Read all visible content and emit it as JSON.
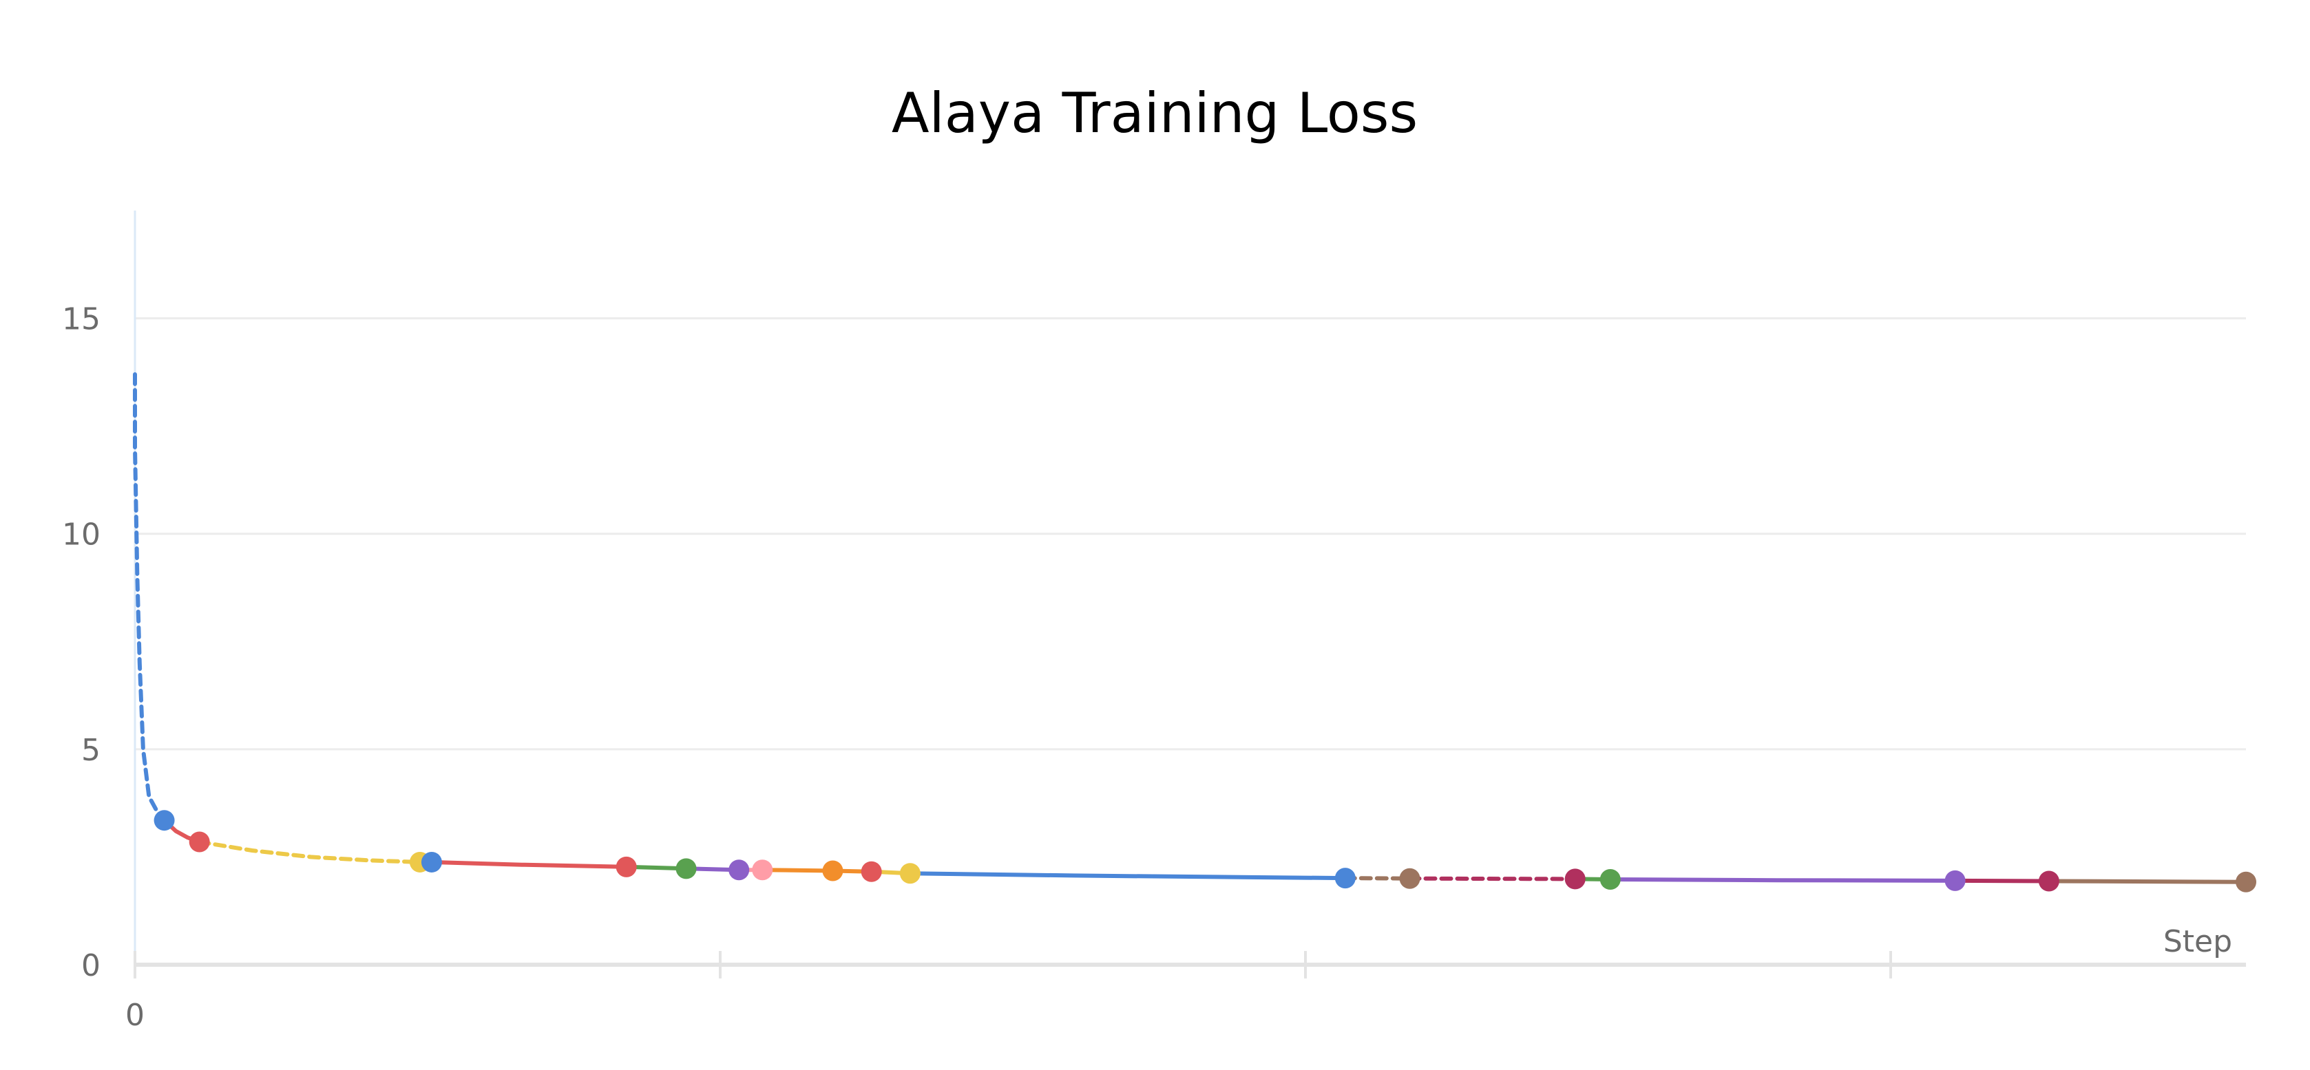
{
  "chart_data": {
    "type": "line",
    "title": "Alaya Training Loss",
    "xlabel": "Step",
    "ylabel": "",
    "x_ticks": [
      0
    ],
    "y_ticks": [
      0,
      5,
      10,
      15
    ],
    "ylim": [
      0,
      17.5
    ],
    "xlim": [
      0,
      1800
    ],
    "grid": true,
    "legend": "none",
    "series": [
      {
        "color": "#4a86d8",
        "style": "dashed",
        "points": [
          [
            0,
            13.7
          ],
          [
            0,
            12
          ],
          [
            1,
            10.5
          ],
          [
            2,
            9
          ],
          [
            4,
            7
          ],
          [
            7,
            5
          ],
          [
            12,
            3.9
          ],
          [
            18,
            3.6
          ],
          [
            25,
            3.35
          ]
        ]
      },
      {
        "color": "#e15759",
        "style": "solid",
        "points": [
          [
            25,
            3.35
          ],
          [
            35,
            3.1
          ],
          [
            45,
            2.95
          ],
          [
            55,
            2.85
          ]
        ]
      },
      {
        "color": "#edc948",
        "style": "dashed",
        "points": [
          [
            55,
            2.85
          ],
          [
            100,
            2.65
          ],
          [
            150,
            2.5
          ],
          [
            200,
            2.42
          ],
          [
            243,
            2.38
          ]
        ]
      },
      {
        "color": "#4a86d8",
        "style": "solid",
        "points": [
          [
            243,
            2.38
          ],
          [
            253,
            2.38
          ]
        ]
      },
      {
        "color": "#e15759",
        "style": "solid",
        "points": [
          [
            253,
            2.38
          ],
          [
            330,
            2.32
          ],
          [
            419,
            2.27
          ]
        ]
      },
      {
        "color": "#59a14f",
        "style": "solid",
        "points": [
          [
            419,
            2.27
          ],
          [
            470,
            2.23
          ]
        ]
      },
      {
        "color": "#8c60c8",
        "style": "solid",
        "points": [
          [
            470,
            2.23
          ],
          [
            515,
            2.2
          ]
        ]
      },
      {
        "color": "#ff9da7",
        "style": "solid",
        "points": [
          [
            515,
            2.2
          ],
          [
            535,
            2.2
          ]
        ]
      },
      {
        "color": "#f28e2b",
        "style": "solid",
        "points": [
          [
            535,
            2.2
          ],
          [
            595,
            2.18
          ],
          [
            628,
            2.16
          ]
        ]
      },
      {
        "color": "#edc948",
        "style": "solid",
        "points": [
          [
            628,
            2.16
          ],
          [
            661,
            2.12
          ]
        ]
      },
      {
        "color": "#4a86d8",
        "style": "solid",
        "points": [
          [
            661,
            2.12
          ],
          [
            800,
            2.07
          ],
          [
            950,
            2.03
          ],
          [
            1032,
            2.01
          ]
        ]
      },
      {
        "color": "#9c755f",
        "style": "dashed",
        "points": [
          [
            1032,
            2.01
          ],
          [
            1087,
            2.0
          ]
        ]
      },
      {
        "color": "#b0305e",
        "style": "dashed",
        "points": [
          [
            1087,
            2.0
          ],
          [
            1228,
            1.99
          ]
        ]
      },
      {
        "color": "#59a14f",
        "style": "solid",
        "points": [
          [
            1228,
            1.99
          ],
          [
            1258,
            1.98
          ]
        ]
      },
      {
        "color": "#8c60c8",
        "style": "solid",
        "points": [
          [
            1258,
            1.98
          ],
          [
            1400,
            1.96
          ],
          [
            1552,
            1.95
          ]
        ]
      },
      {
        "color": "#b0305e",
        "style": "solid",
        "points": [
          [
            1552,
            1.95
          ],
          [
            1632,
            1.94
          ]
        ]
      },
      {
        "color": "#9c755f",
        "style": "solid",
        "points": [
          [
            1632,
            1.94
          ],
          [
            1720,
            1.93
          ],
          [
            1800,
            1.92
          ]
        ]
      }
    ],
    "markers": [
      {
        "x": 25,
        "y": 3.35,
        "color": "#4a86d8"
      },
      {
        "x": 55,
        "y": 2.85,
        "color": "#e15759"
      },
      {
        "x": 243,
        "y": 2.38,
        "color": "#edc948"
      },
      {
        "x": 253,
        "y": 2.38,
        "color": "#4a86d8"
      },
      {
        "x": 419,
        "y": 2.27,
        "color": "#e15759"
      },
      {
        "x": 470,
        "y": 2.23,
        "color": "#59a14f"
      },
      {
        "x": 515,
        "y": 2.2,
        "color": "#8c60c8"
      },
      {
        "x": 535,
        "y": 2.2,
        "color": "#ff9da7"
      },
      {
        "x": 595,
        "y": 2.18,
        "color": "#f28e2b"
      },
      {
        "x": 628,
        "y": 2.16,
        "color": "#e15759"
      },
      {
        "x": 661,
        "y": 2.12,
        "color": "#edc948"
      },
      {
        "x": 1032,
        "y": 2.01,
        "color": "#4a86d8"
      },
      {
        "x": 1087,
        "y": 2.0,
        "color": "#9c755f"
      },
      {
        "x": 1228,
        "y": 1.99,
        "color": "#b0305e"
      },
      {
        "x": 1258,
        "y": 1.98,
        "color": "#59a14f"
      },
      {
        "x": 1552,
        "y": 1.95,
        "color": "#8c60c8"
      },
      {
        "x": 1632,
        "y": 1.94,
        "color": "#b0305e"
      },
      {
        "x": 1800,
        "y": 1.92,
        "color": "#9c755f"
      }
    ]
  }
}
